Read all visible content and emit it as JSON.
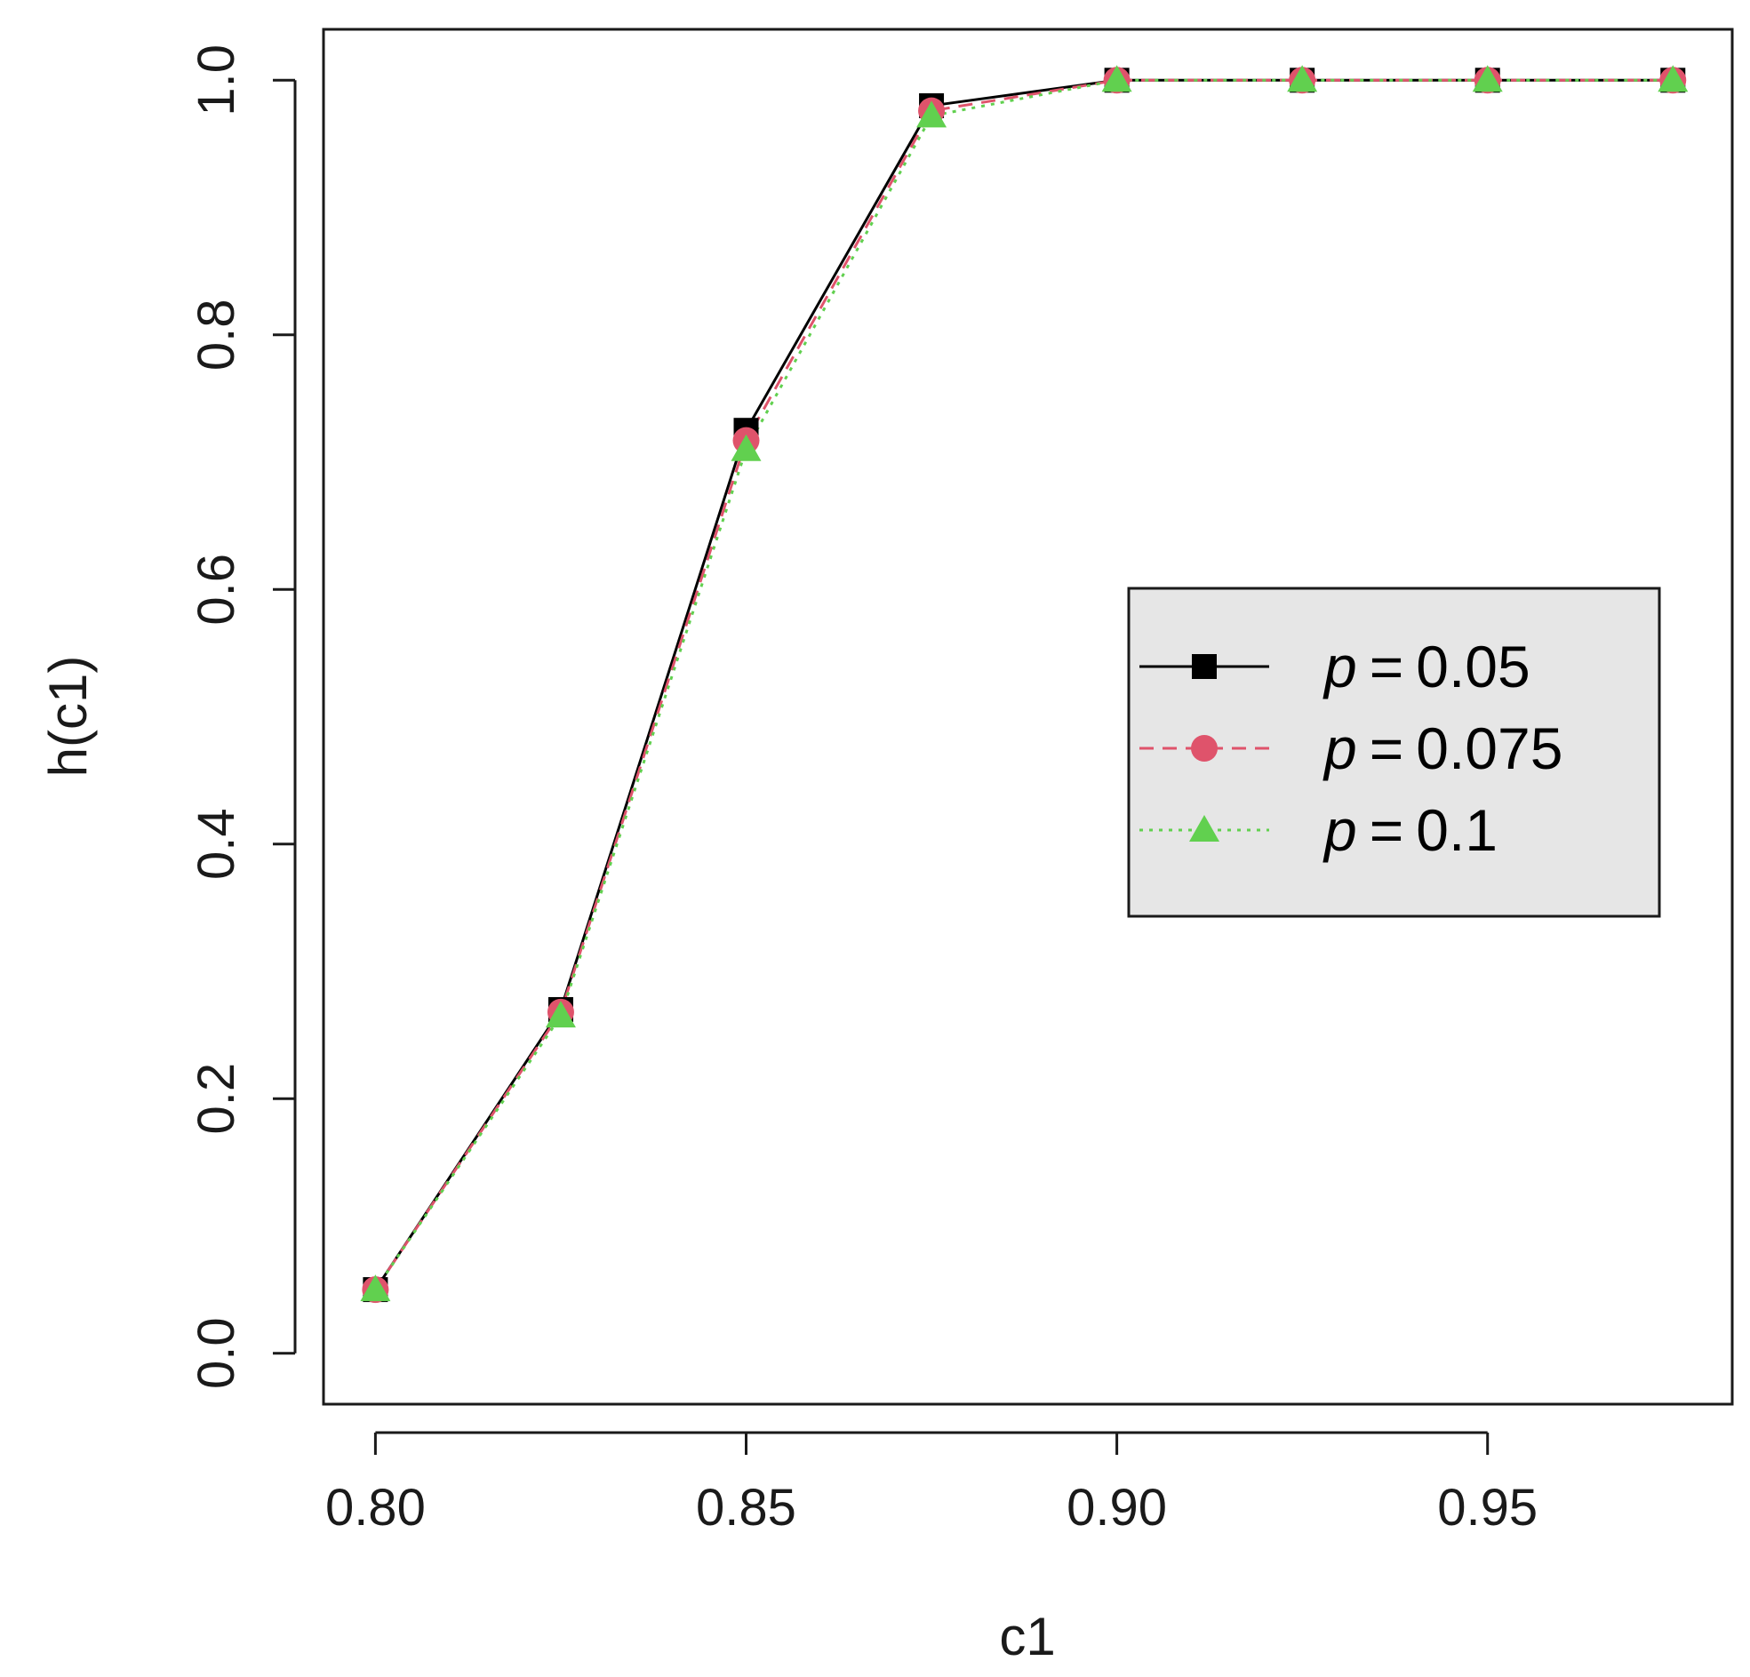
{
  "chart_data": {
    "type": "line",
    "title": "",
    "xlabel": "c1",
    "ylabel": "h(c1)",
    "x": [
      0.8,
      0.825,
      0.85,
      0.875,
      0.9,
      0.925,
      0.95,
      0.975
    ],
    "xlim": [
      0.793,
      0.983
    ],
    "ylim": [
      -0.04,
      1.04
    ],
    "x_ticks": [
      0.8,
      0.85,
      0.9,
      0.95
    ],
    "x_tick_labels": [
      "0.80",
      "0.85",
      "0.90",
      "0.95"
    ],
    "y_ticks": [
      0.0,
      0.2,
      0.4,
      0.6,
      0.8,
      1.0
    ],
    "y_tick_labels": [
      "0.0",
      "0.2",
      "0.4",
      "0.6",
      "0.8",
      "1.0"
    ],
    "grid": false,
    "legend_position": "right",
    "series": [
      {
        "name": "0.05",
        "values": [
          0.05,
          0.27,
          0.725,
          0.98,
          1.0,
          1.0,
          1.0,
          1.0
        ],
        "color": "#000000",
        "line_style": "solid",
        "marker": "square"
      },
      {
        "name": "0.075",
        "values": [
          0.05,
          0.268,
          0.717,
          0.976,
          1.0,
          1.0,
          1.0,
          1.0
        ],
        "color": "#DF536B",
        "line_style": "dashed",
        "marker": "circle"
      },
      {
        "name": "0.1",
        "values": [
          0.05,
          0.265,
          0.71,
          0.972,
          1.0,
          1.0,
          1.0,
          1.0
        ],
        "color": "#61D04F",
        "line_style": "dotted",
        "marker": "triangle"
      }
    ],
    "legend": {
      "prefix": "p",
      "operator": "=",
      "background": "#e6e6e6"
    }
  }
}
